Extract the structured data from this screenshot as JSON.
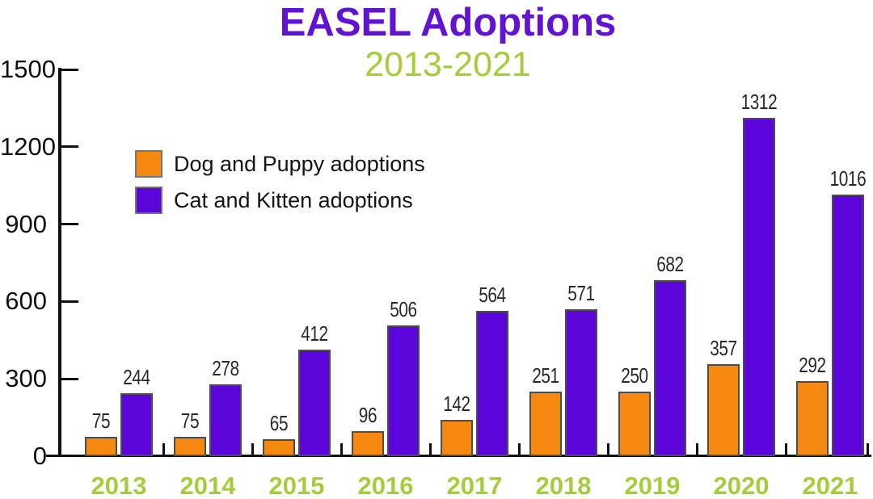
{
  "title": "EASEL Adoptions",
  "subtitle": "2013-2021",
  "colors": {
    "title_purple": "#6212d1",
    "subtitle_green": "#a4cd39",
    "dog_orange": "#f6870f",
    "cat_purple": "#5c05db",
    "axis_black": "#111111",
    "bar_border_gray": "#4d4d4d",
    "value_label_gray": "#282828"
  },
  "chart_data": {
    "type": "bar",
    "title": "EASEL Adoptions",
    "subtitle": "2013-2021",
    "categories": [
      "2013",
      "2014",
      "2015",
      "2016",
      "2017",
      "2018",
      "2019",
      "2020",
      "2021"
    ],
    "series": [
      {
        "name": "Dog and Puppy adoptions",
        "color": "#f6870f",
        "values": [
          75,
          75,
          65,
          96,
          142,
          251,
          250,
          357,
          292
        ]
      },
      {
        "name": "Cat and Kitten adoptions",
        "color": "#5c05db",
        "values": [
          244,
          278,
          412,
          506,
          564,
          571,
          682,
          1312,
          1016
        ]
      }
    ],
    "xlabel": "",
    "ylabel": "",
    "ylim": [
      0,
      1500
    ],
    "yticks": [
      0,
      300,
      600,
      900,
      1200,
      1500
    ],
    "grid": false,
    "bar_value_labels": true,
    "legend_position": "upper-left-inside"
  }
}
